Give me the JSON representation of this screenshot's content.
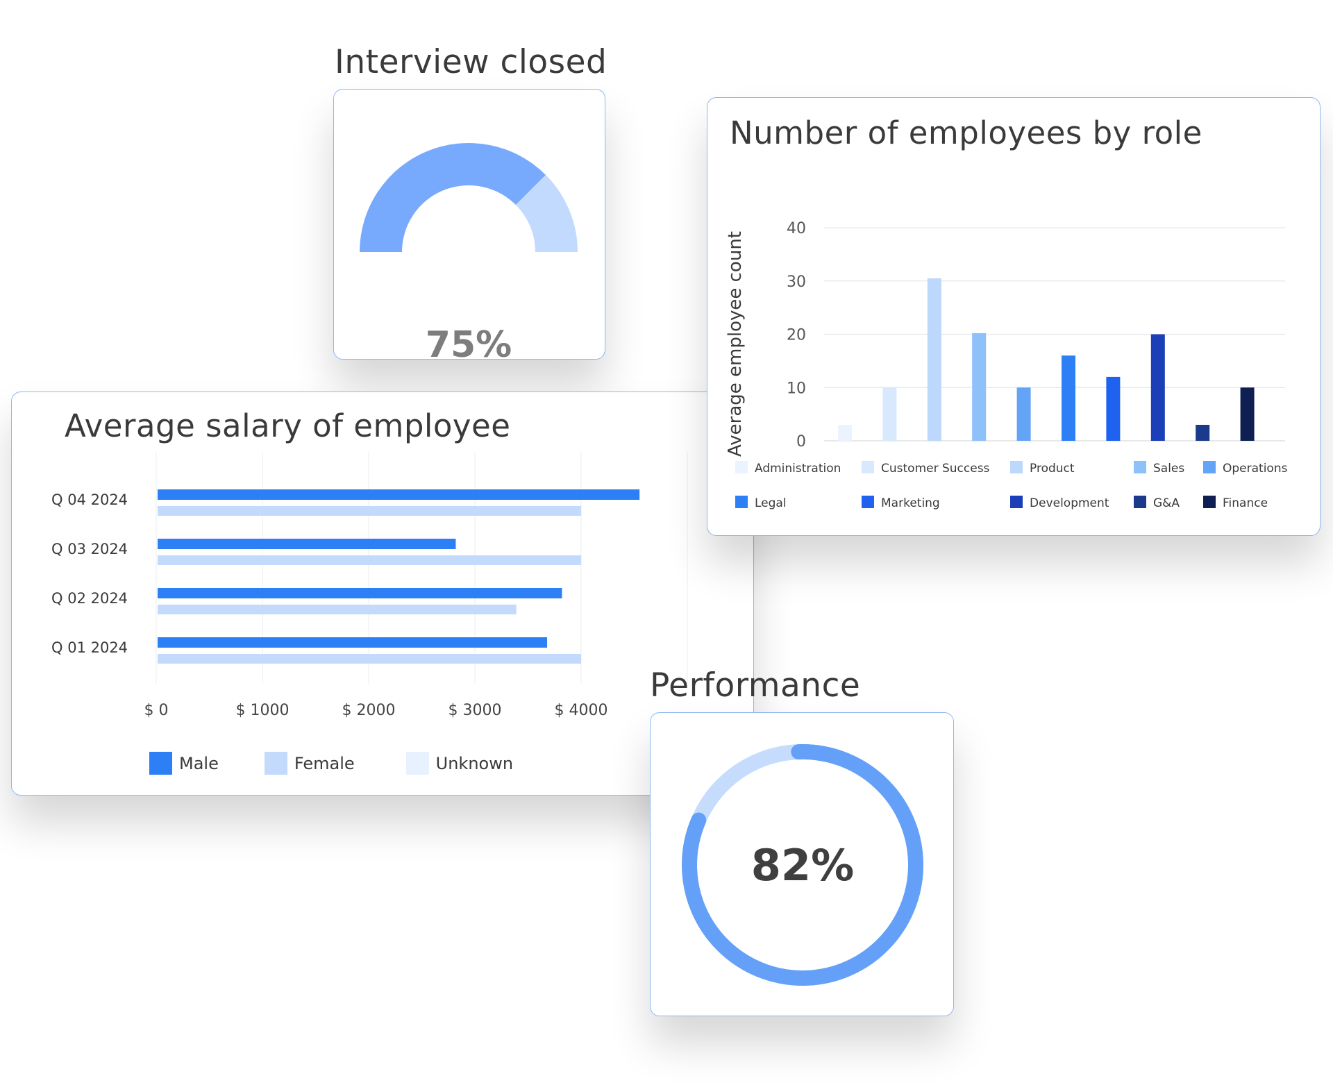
{
  "interview": {
    "title": "Interview closed",
    "value_text": "75%",
    "value": 0.75,
    "colors": {
      "filled": "#77aafc",
      "remaining": "#c2dafd"
    }
  },
  "employees": {
    "title": "Number of employees by role",
    "ylabel": "Average employee count",
    "yticks": [
      "0",
      "10",
      "20",
      "30",
      "40"
    ]
  },
  "salary": {
    "title": "Average salary of employee",
    "xticks": [
      "$ 0",
      "$ 1000",
      "$ 2000",
      "$ 3000",
      "$ 4000"
    ],
    "categories": [
      "Q 04 2024",
      "Q 03 2024",
      "Q 02 2024",
      "Q 01 2024"
    ],
    "legend": [
      "Male",
      "Female",
      "Unknown"
    ]
  },
  "performance": {
    "title": "Performance",
    "value_text": "82%",
    "value": 0.82,
    "colors": {
      "filled": "#64a0f8",
      "remaining": "#c6dcfd"
    }
  },
  "chart_data": [
    {
      "type": "gauge",
      "title": "Interview closed",
      "value": 75,
      "unit": "%"
    },
    {
      "type": "bar",
      "title": "Number of employees by role",
      "ylabel": "Average employee count",
      "ylim": [
        0,
        40
      ],
      "grid": true,
      "legend_position": "bottom",
      "categories": [
        "Administration",
        "Customer Success",
        "Product",
        "Sales",
        "Operations",
        "Legal",
        "Marketing",
        "Development",
        "G&A",
        "Finance"
      ],
      "values": [
        3,
        10,
        30.5,
        20.2,
        10,
        16,
        12,
        20,
        3,
        10
      ],
      "colors": [
        "#eaf3fe",
        "#d8e8fd",
        "#bcd8fc",
        "#8ec0fa",
        "#63a4f7",
        "#2d7ff6",
        "#1f62f0",
        "#1a3fb8",
        "#1c3a8c",
        "#0f1f52"
      ]
    },
    {
      "type": "bar",
      "orientation": "horizontal",
      "title": "Average salary of employee",
      "xlim": [
        0,
        4800
      ],
      "grid": true,
      "legend_position": "bottom",
      "categories": [
        "Q 04 2024",
        "Q 03 2024",
        "Q 02 2024",
        "Q 01 2024"
      ],
      "series": [
        {
          "name": "Male",
          "color": "#2d7ff6",
          "values": [
            4550,
            2820,
            3820,
            3680
          ]
        },
        {
          "name": "Female",
          "color": "#c3dafd",
          "values": [
            4000,
            4000,
            3390,
            4000
          ]
        },
        {
          "name": "Unknown",
          "color": "#e8f1fe",
          "values": [
            0,
            0,
            0,
            0
          ]
        }
      ]
    },
    {
      "type": "donut",
      "title": "Performance",
      "value": 82,
      "unit": "%"
    }
  ]
}
